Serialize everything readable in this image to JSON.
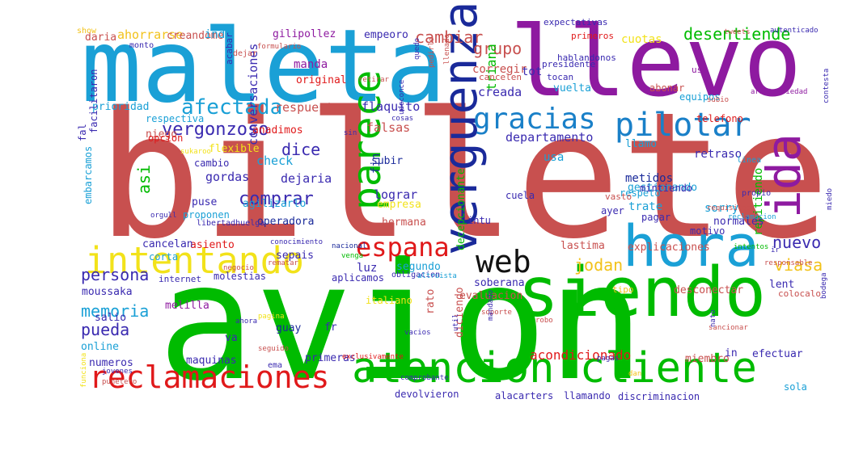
{
  "words": [
    {
      "text": "billete",
      "color": "#c8504f"
    },
    {
      "text": "avion",
      "color": "#00bb00"
    },
    {
      "text": "maleta",
      "color": "#1aa0d6"
    },
    {
      "text": "llevo",
      "color": "#8e1aa0"
    },
    {
      "text": "siendo",
      "color": "#00bb00"
    },
    {
      "text": "hora",
      "color": "#1aa0d6"
    },
    {
      "text": "atencion cliente",
      "color": "#00bb00"
    },
    {
      "text": "reclamaciones",
      "color": "#e0191a"
    },
    {
      "text": "intentando",
      "color": "#f2e21a"
    },
    {
      "text": "verguenza",
      "color": "#1a2a9a"
    },
    {
      "text": "ida",
      "color": "#8e1aa0"
    },
    {
      "text": "parece",
      "color": "#00bb00"
    },
    {
      "text": "gracias",
      "color": "#1a80c8"
    },
    {
      "text": "pilotar",
      "color": "#1a80c8"
    },
    {
      "text": "espana",
      "color": "#e0191a"
    },
    {
      "text": "web",
      "color": "#111111"
    },
    {
      "text": "afectada",
      "color": "#1aa0d6"
    },
    {
      "text": "vergonzoso",
      "color": "#3a2ab0"
    },
    {
      "text": "comprar",
      "color": "#3a2ab0"
    },
    {
      "text": "persona",
      "color": "#3a2ab0"
    },
    {
      "text": "memoria",
      "color": "#1aa0d6"
    },
    {
      "text": "pueda",
      "color": "#3a2ab0"
    },
    {
      "text": "nuevo",
      "color": "#3a2ab0"
    },
    {
      "text": "viasa",
      "color": "#f2c21a"
    },
    {
      "text": "jodan",
      "color": "#f2c21a"
    },
    {
      "text": "desentiende",
      "color": "#00bb00"
    },
    {
      "text": "cambiar",
      "color": "#c8504f"
    },
    {
      "text": "grupo",
      "color": "#c8504f"
    },
    {
      "text": "dice",
      "color": "#3a2ab0"
    },
    {
      "text": "asi",
      "color": "#00bb00"
    },
    {
      "text": "acondicionado",
      "color": "#e0191a"
    },
    {
      "text": "ahorrarse",
      "color": "#f2c21a"
    },
    {
      "text": "creandome",
      "color": "#c8504f"
    },
    {
      "text": "gilipollez",
      "color": "#8e1aa0"
    },
    {
      "text": "empeoro",
      "color": "#3a2ab0"
    },
    {
      "text": "cuotas",
      "color": "#f2e21a"
    },
    {
      "text": "indi",
      "color": "#1aa0d6"
    },
    {
      "text": "daria",
      "color": "#c8504f"
    },
    {
      "text": "original",
      "color": "#e0191a"
    },
    {
      "text": "manda",
      "color": "#8e1aa0"
    },
    {
      "text": "corregir",
      "color": "#c8504f"
    },
    {
      "text": "tot",
      "color": "#3a2ab0"
    },
    {
      "text": "creada",
      "color": "#3a2ab0"
    },
    {
      "text": "vuelta",
      "color": "#1aa0d6"
    },
    {
      "text": "triana",
      "color": "#00bb00"
    },
    {
      "text": "flaquito",
      "color": "#3a2ab0"
    },
    {
      "text": "respuesta",
      "color": "#c8504f"
    },
    {
      "text": "falsas",
      "color": "#c8504f"
    },
    {
      "text": "prioridad",
      "color": "#1aa0d6"
    },
    {
      "text": "respectiva",
      "color": "#1aa0d6"
    },
    {
      "text": "conversaciones",
      "color": "#3a2ab0"
    },
    {
      "text": "anadimos",
      "color": "#e0191a"
    },
    {
      "text": "niego",
      "color": "#c8504f"
    },
    {
      "text": "flexible",
      "color": "#f2e21a"
    },
    {
      "text": "check",
      "color": "#1aa0d6"
    },
    {
      "text": "dejaria",
      "color": "#3a2ab0"
    },
    {
      "text": "gordas",
      "color": "#3a2ab0"
    },
    {
      "text": "agilizarlo",
      "color": "#1aa0d6"
    },
    {
      "text": "puse",
      "color": "#3a2ab0"
    },
    {
      "text": "proponen",
      "color": "#1aa0d6"
    },
    {
      "text": "operadora",
      "color": "#1a2a9a"
    },
    {
      "text": "lograr",
      "color": "#3a2ab0"
    },
    {
      "text": "empresa",
      "color": "#f2e21a"
    },
    {
      "text": "hermana",
      "color": "#c8504f"
    },
    {
      "text": "fin",
      "color": "#1a2a9a"
    },
    {
      "text": "subir",
      "color": "#1a2a9a"
    },
    {
      "text": "departamento",
      "color": "#3a2ab0"
    },
    {
      "text": "usa",
      "color": "#1aa0d6"
    },
    {
      "text": "llamo",
      "color": "#1aa0d6"
    },
    {
      "text": "retraso",
      "color": "#3a2ab0"
    },
    {
      "text": "metidos",
      "color": "#1a2a9a"
    },
    {
      "text": "gestionando",
      "color": "#1aa0d6"
    },
    {
      "text": "trate",
      "color": "#1aa0d6"
    },
    {
      "text": "sorry",
      "color": "#1aa0d6"
    },
    {
      "text": "repitiendo",
      "color": "#00bb00"
    },
    {
      "text": "normales",
      "color": "#3a2ab0"
    },
    {
      "text": "decepcionante",
      "color": "#00bb00"
    },
    {
      "text": "lastima",
      "color": "#c8504f"
    },
    {
      "text": "explicaciones",
      "color": "#c8504f"
    },
    {
      "text": "segundo",
      "color": "#1aa0d6"
    },
    {
      "text": "luz",
      "color": "#3a2ab0"
    },
    {
      "text": "aplicamos",
      "color": "#3a2ab0"
    },
    {
      "text": "italiano",
      "color": "#f2e21a"
    },
    {
      "text": "soberana",
      "color": "#3a2ab0"
    },
    {
      "text": "evaluacion",
      "color": "#c8504f"
    },
    {
      "text": "lent",
      "color": "#3a2ab0"
    },
    {
      "text": "desconectar",
      "color": "#c8504f"
    },
    {
      "text": "moussaka",
      "color": "#3a2ab0"
    },
    {
      "text": "melilla",
      "color": "#8e1aa0"
    },
    {
      "text": "salio",
      "color": "#3a2ab0"
    },
    {
      "text": "online",
      "color": "#1aa0d6"
    },
    {
      "text": "numeros",
      "color": "#3a2ab0"
    },
    {
      "text": "maquinas",
      "color": "#3a2ab0"
    },
    {
      "text": "primeras",
      "color": "#3a2ab0"
    },
    {
      "text": "va",
      "color": "#3a2ab0"
    },
    {
      "text": "guay",
      "color": "#1a2a9a"
    },
    {
      "text": "fr",
      "color": "#3a2ab0"
    },
    {
      "text": "rato",
      "color": "#c8504f"
    },
    {
      "text": "diciendo",
      "color": "#c8504f"
    },
    {
      "text": "miembro",
      "color": "#c8504f"
    },
    {
      "text": "in",
      "color": "#3a2ab0"
    },
    {
      "text": "efectuar",
      "color": "#3a2ab0"
    },
    {
      "text": "sola",
      "color": "#1aa0d6"
    },
    {
      "text": "devolvieron",
      "color": "#3a2ab0"
    },
    {
      "text": "alacarters",
      "color": "#3a2ab0"
    },
    {
      "text": "llamando",
      "color": "#3a2ab0"
    },
    {
      "text": "discriminacion",
      "color": "#3a2ab0"
    },
    {
      "text": "sepais",
      "color": "#3a2ab0"
    },
    {
      "text": "asiento",
      "color": "#e0191a"
    },
    {
      "text": "cancelan",
      "color": "#3a2ab0"
    },
    {
      "text": "corta",
      "color": "#1aa0d6"
    },
    {
      "text": "cambio",
      "color": "#3a2ab0"
    },
    {
      "text": "opcion",
      "color": "#e0191a"
    },
    {
      "text": "fal",
      "color": "#3a2ab0"
    },
    {
      "text": "facilitaron",
      "color": "#3a2ab0"
    },
    {
      "text": "embarcamos",
      "color": "#1aa0d6"
    },
    {
      "text": "respeto",
      "color": "#1aa0d6"
    },
    {
      "text": "mintiendo",
      "color": "#3a2ab0"
    },
    {
      "text": "pagar",
      "color": "#3a2ab0"
    },
    {
      "text": "motivo",
      "color": "#3a2ab0"
    },
    {
      "text": "ayer",
      "color": "#3a2ab0"
    },
    {
      "text": "intu",
      "color": "#3a2ab0"
    },
    {
      "text": "cuela",
      "color": "#3a2ab0"
    },
    {
      "text": "propio",
      "color": "#3a2ab0"
    },
    {
      "text": "linea",
      "color": "#1aa0d6"
    },
    {
      "text": "telefono",
      "color": "#e0191a"
    },
    {
      "text": "equipos",
      "color": "#1aa0d6"
    },
    {
      "text": "abonar",
      "color": "#c8504f"
    },
    {
      "text": "uso",
      "color": "#8e1aa0"
    },
    {
      "text": "cancelen",
      "color": "#c8504f"
    },
    {
      "text": "tocan",
      "color": "#3a2ab0"
    },
    {
      "text": "hablandonos",
      "color": "#3a2ab0"
    },
    {
      "text": "presidente",
      "color": "#3a2ab0"
    },
    {
      "text": "expectativas",
      "color": "#3a2ab0"
    },
    {
      "text": "primeros",
      "color": "#e0191a"
    },
    {
      "text": "acabar",
      "color": "#3a2ab0"
    },
    {
      "text": "dejar",
      "color": "#c8504f"
    },
    {
      "text": "show",
      "color": "#f2c21a"
    },
    {
      "text": "monto",
      "color": "#3a2ab0"
    },
    {
      "text": "tipo",
      "color": "#f2c21a"
    },
    {
      "text": "colocalo",
      "color": "#c8504f"
    },
    {
      "text": "requisitos",
      "color": "#c8504f"
    },
    {
      "text": "reclamacion",
      "color": "#1aa0d6"
    },
    {
      "text": "robo",
      "color": "#c8504f"
    },
    {
      "text": "soporte",
      "color": "#c8504f"
    },
    {
      "text": "pagas",
      "color": "#3a2ab0"
    },
    {
      "text": "vacios",
      "color": "#3a2ab0"
    },
    {
      "text": "pagina",
      "color": "#f2e21a"
    },
    {
      "text": "seguido",
      "color": "#c8504f"
    },
    {
      "text": "punetero",
      "color": "#c8504f"
    },
    {
      "text": "jovenes",
      "color": "#3a2ab0"
    },
    {
      "text": "conocimiento",
      "color": "#3a2ab0"
    },
    {
      "text": "negocio",
      "color": "#c8504f"
    },
    {
      "text": "internet",
      "color": "#3a2ab0"
    },
    {
      "text": "molestias",
      "color": "#3a2ab0"
    },
    {
      "text": "obligacion",
      "color": "#3a2ab0"
    },
    {
      "text": "altruista",
      "color": "#1aa0d6"
    },
    {
      "text": "ema",
      "color": "#3a2ab0"
    },
    {
      "text": "util",
      "color": "#3a2ab0"
    },
    {
      "text": "mandado",
      "color": "#3a2ab0"
    },
    {
      "text": "comprobante",
      "color": "#3a2ab0"
    },
    {
      "text": "exclusivamente",
      "color": "#e0191a"
    },
    {
      "text": "responsable",
      "color": "#c8504f"
    },
    {
      "text": "libertadhuelga",
      "color": "#3a2ab0"
    },
    {
      "text": "orgull",
      "color": "#3a2ab0"
    },
    {
      "text": "sukaroo",
      "color": "#f2e21a"
    },
    {
      "text": "udeconce",
      "color": "#3a2ab0"
    },
    {
      "text": "cosas",
      "color": "#3a2ab0"
    },
    {
      "text": "quedo",
      "color": "#3a2ab0"
    },
    {
      "text": "pedirlo",
      "color": "#c8504f"
    },
    {
      "text": "llenado",
      "color": "#c8504f"
    },
    {
      "text": "retirar",
      "color": "#c8504f"
    },
    {
      "text": "subio",
      "color": "#c8504f"
    },
    {
      "text": "contesta",
      "color": "#3a2ab0"
    },
    {
      "text": "tweets",
      "color": "#c8504f"
    },
    {
      "text": "autenticado",
      "color": "#3a2ab0"
    },
    {
      "text": "arbitrariedad",
      "color": "#8e1aa0"
    },
    {
      "text": "formulario",
      "color": "#c8504f"
    },
    {
      "text": "bodega",
      "color": "#3a2ab0"
    },
    {
      "text": "funciona",
      "color": "#f2e21a"
    },
    {
      "text": "vasto",
      "color": "#c8504f"
    },
    {
      "text": "sancionar",
      "color": "#c8504f"
    },
    {
      "text": "intentos",
      "color": "#00bb00"
    },
    {
      "text": "ir",
      "color": "#3a2ab0"
    },
    {
      "text": "nacional",
      "color": "#1a2a9a"
    },
    {
      "text": "miedo",
      "color": "#3a2ab0"
    },
    {
      "text": "ahora",
      "color": "#3a2ab0"
    },
    {
      "text": "nato",
      "color": "#3a2ab0"
    },
    {
      "text": "rematar",
      "color": "#c8504f"
    },
    {
      "text": "dan",
      "color": "#f2c21a"
    },
    {
      "text": "venga",
      "color": "#00bb00"
    },
    {
      "text": "sin",
      "color": "#3a2ab0"
    },
    {
      "text": "mochila",
      "color": "#3a2ab0"
    },
    {
      "text": "habiado",
      "color": "#3a2ab0"
    },
    {
      "text": "mecho",
      "color": "#3a2ab0"
    },
    {
      "text": "ver",
      "color": "#3a2ab0"
    }
  ]
}
